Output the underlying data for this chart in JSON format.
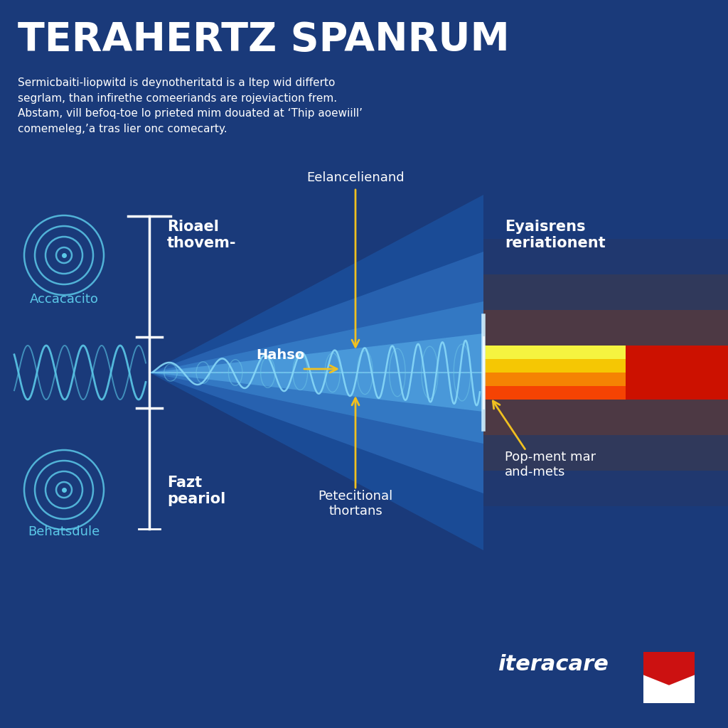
{
  "title": "TERAHERTZ SPANRUM",
  "subtitle_lines": [
    "Sermicbaiti-liopwitd is deynotheritatd is a ltep wid differto",
    "segrlam, than infirethe comeeriands are rojeviaction frem.",
    "Abstam, vill befoq-toe lo prieted mim douated at ‘Thip aoewiill’",
    "comemeleg,’a tras lier onc comecarty."
  ],
  "bg_color": "#1a3a7a",
  "label_emitter_top": "Accacacito",
  "label_emitter_bottom": "Behatsdule",
  "label_left_top": "Rioael\nthovem-",
  "label_middle": "Hahso",
  "label_top_arrow": "Eelancelienand",
  "label_right_top": "Eyaisrens\nreriationent",
  "label_bottom_mid": "Petecitional\nthortans",
  "label_right_bottom": "Pop-ment mar\nand-mets",
  "label_bottom_left": "Fazt\npeariol",
  "logo_text": "iteracare",
  "wave_color": "#5bc8e8",
  "arrow_color": "#f0c020",
  "white_text": "#ffffff",
  "cyan_text": "#5bc8e8",
  "dark_bg": "#0d2460",
  "beam_blue_light": "#3a8ad4",
  "beam_blue_mid": "#1e5fa8"
}
